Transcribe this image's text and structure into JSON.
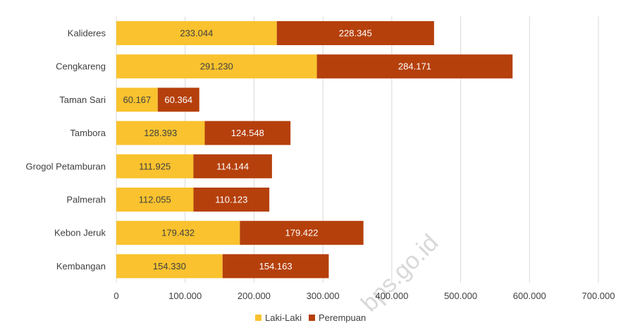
{
  "colors": {
    "laki": "#F9C22E",
    "perempuan": "#B5400C",
    "grid": "#D9D9D9",
    "label_on_laki": "#404040",
    "label_on_perempuan": "#FFFFFF"
  },
  "watermark": "bps.go.id",
  "chart_data": {
    "type": "bar",
    "orientation": "horizontal",
    "stacked": true,
    "categories": [
      "Kalideres",
      "Cengkareng",
      "Taman Sari",
      "Tambora",
      "Grogol Petamburan",
      "Palmerah",
      "Kebon Jeruk",
      "Kembangan"
    ],
    "series": [
      {
        "name": "Laki-Laki",
        "color": "#F9C22E",
        "values": [
          233044,
          291230,
          60167,
          128393,
          111925,
          112055,
          179432,
          154330
        ],
        "labels": [
          "233.044",
          "291.230",
          "60.167",
          "128.393",
          "111.925",
          "112.055",
          "179.432",
          "154.330"
        ]
      },
      {
        "name": "Perempuan",
        "color": "#B5400C",
        "values": [
          228345,
          284171,
          60364,
          124548,
          114144,
          110123,
          179422,
          154163
        ],
        "labels": [
          "228.345",
          "284.171",
          "60.364",
          "124.548",
          "114.144",
          "110.123",
          "179.422",
          "154.163"
        ]
      }
    ],
    "xlim": [
      0,
      700000
    ],
    "xticks": [
      0,
      100000,
      200000,
      300000,
      400000,
      500000,
      600000,
      700000
    ],
    "xtick_labels": [
      "0",
      "100.000",
      "200.000",
      "300.000",
      "400.000",
      "500.000",
      "600.000",
      "700.000"
    ],
    "grid": "vertical",
    "legend_position": "bottom-center"
  }
}
